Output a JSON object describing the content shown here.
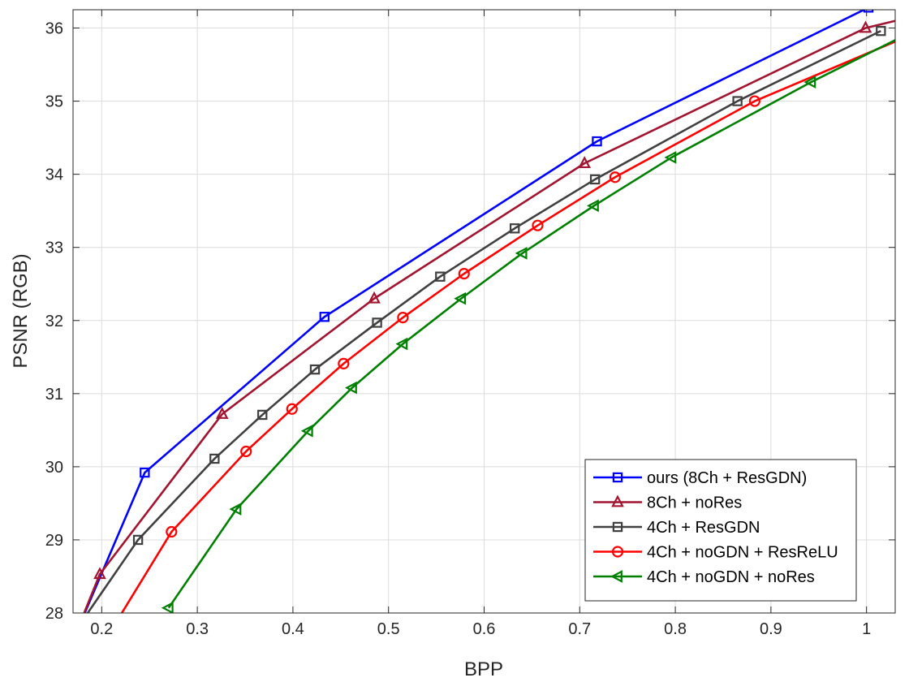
{
  "chart_data": {
    "type": "line",
    "title": "",
    "xlabel": "BPP",
    "ylabel": "PSNR (RGB)",
    "xlim": [
      0.17,
      1.03
    ],
    "ylim": [
      28,
      36.25
    ],
    "xticks": [
      0.2,
      0.3,
      0.4,
      0.5,
      0.6,
      0.7,
      0.8,
      0.9,
      1
    ],
    "xtick_labels": [
      "0.2",
      "0.3",
      "0.4",
      "0.5",
      "0.6",
      "0.7",
      "0.8",
      "0.9",
      "1"
    ],
    "yticks": [
      28,
      29,
      30,
      31,
      32,
      33,
      34,
      35,
      36
    ],
    "ytick_labels": [
      "28",
      "29",
      "30",
      "31",
      "32",
      "33",
      "34",
      "35",
      "36"
    ],
    "grid": true,
    "legend_position": "bottom-right",
    "series": [
      {
        "name": "ours (8Ch + ResGDN)",
        "color": "#0000ff",
        "marker": "square",
        "x": [
          0.178,
          0.245,
          0.433,
          0.718,
          1.002
        ],
        "y": [
          27.87,
          29.92,
          32.05,
          34.45,
          36.28
        ]
      },
      {
        "name": "8Ch + noRes",
        "color": "#a2142f",
        "marker": "triangle-up",
        "x": [
          0.177,
          0.198,
          0.326,
          0.485,
          0.705,
          0.999,
          1.04
        ],
        "y": [
          27.85,
          28.53,
          30.72,
          32.3,
          34.15,
          36.0,
          36.13
        ]
      },
      {
        "name": "4Ch + ResGDN",
        "color": "#404040",
        "marker": "square",
        "x": [
          0.178,
          0.238,
          0.318,
          0.368,
          0.423,
          0.488,
          0.554,
          0.632,
          0.716,
          0.865,
          1.015
        ],
        "y": [
          27.86,
          29.0,
          30.11,
          30.71,
          31.33,
          31.97,
          32.6,
          33.26,
          33.93,
          35.0,
          35.96
        ]
      },
      {
        "name": "4Ch + noGDN + ResReLU",
        "color": "#ff0000",
        "marker": "circle",
        "x": [
          0.214,
          0.273,
          0.351,
          0.399,
          0.453,
          0.515,
          0.579,
          0.656,
          0.737,
          0.883,
          1.04
        ],
        "y": [
          27.85,
          29.11,
          30.21,
          30.79,
          31.41,
          32.04,
          32.64,
          33.3,
          33.96,
          35.0,
          35.87
        ]
      },
      {
        "name": "4Ch + noGDN + noRes",
        "color": "#008000",
        "marker": "triangle-left",
        "x": [
          0.27,
          0.341,
          0.416,
          0.462,
          0.515,
          0.576,
          0.64,
          0.715,
          0.796,
          0.942,
          1.04
        ],
        "y": [
          28.07,
          29.42,
          30.49,
          31.08,
          31.68,
          32.3,
          32.92,
          33.57,
          34.23,
          35.26,
          35.9
        ]
      }
    ]
  }
}
